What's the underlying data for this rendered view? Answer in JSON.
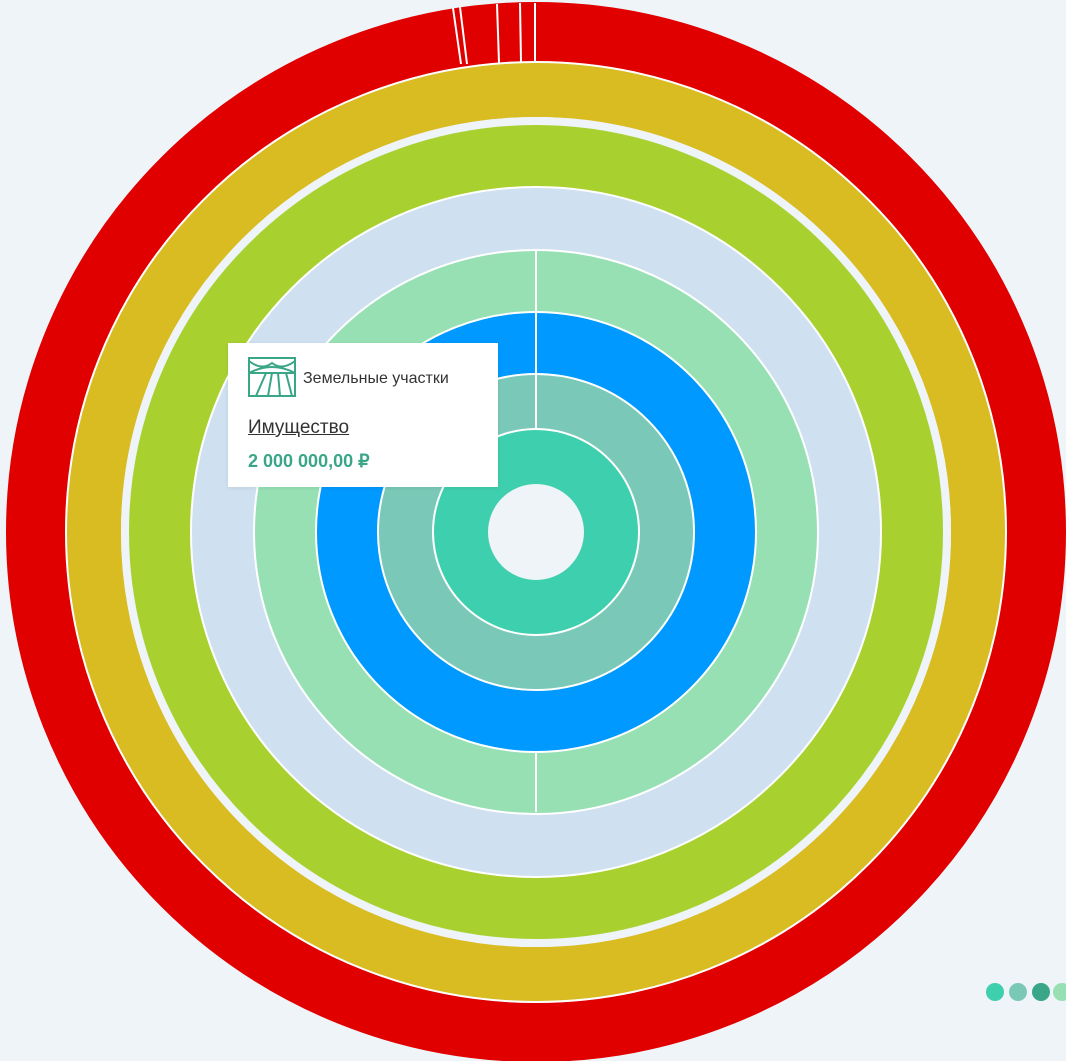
{
  "tooltip": {
    "category": "Земельные участки",
    "title": "Имущество",
    "amount": "2 000 000,00 ₽"
  }
}
